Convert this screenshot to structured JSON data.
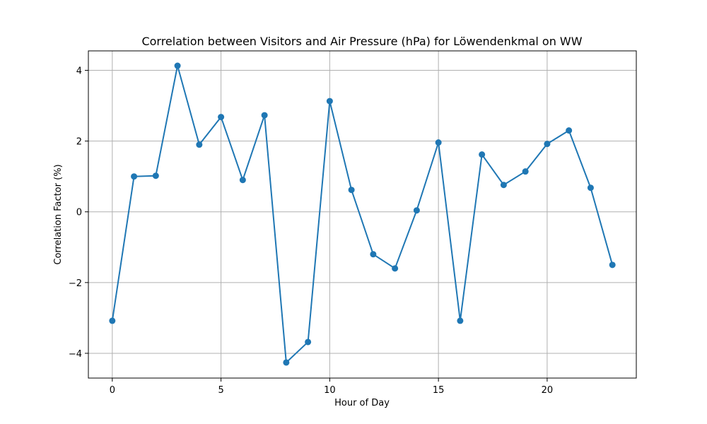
{
  "chart_data": {
    "type": "line",
    "title": "Correlation between Visitors and Air Pressure (hPa) for Löwendenkmal on WW",
    "xlabel": "Hour of Day",
    "ylabel": "Correlation Factor (%)",
    "xlim": [
      -1.1,
      24.1
    ],
    "ylim": [
      -4.7,
      4.55
    ],
    "xticks": [
      0,
      5,
      10,
      15,
      20
    ],
    "xtick_labels": [
      "0",
      "5",
      "10",
      "15",
      "20"
    ],
    "yticks": [
      -4,
      -2,
      0,
      2,
      4
    ],
    "ytick_labels": [
      "−4",
      "−2",
      "0",
      "2",
      "4"
    ],
    "grid": true,
    "series": [
      {
        "color": "#1f77b4",
        "marker": "circle",
        "x": [
          0,
          1,
          2,
          3,
          4,
          5,
          6,
          7,
          8,
          9,
          10,
          11,
          12,
          13,
          14,
          15,
          16,
          17,
          18,
          19,
          20,
          21,
          22,
          23
        ],
        "y": [
          -3.08,
          1.0,
          1.02,
          4.13,
          1.9,
          2.68,
          0.9,
          2.73,
          -4.26,
          -3.68,
          3.13,
          0.62,
          -1.2,
          -1.6,
          0.04,
          1.96,
          -3.08,
          1.62,
          0.76,
          1.14,
          1.92,
          2.3,
          0.68,
          -1.5
        ]
      }
    ]
  }
}
